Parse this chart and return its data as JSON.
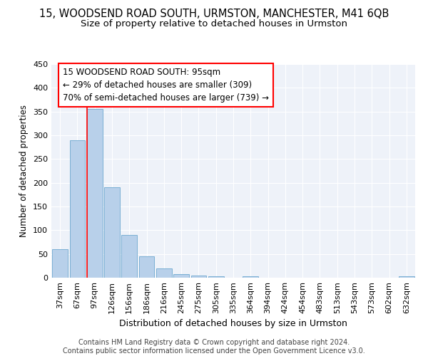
{
  "title_line1": "15, WOODSEND ROAD SOUTH, URMSTON, MANCHESTER, M41 6QB",
  "title_line2": "Size of property relative to detached houses in Urmston",
  "xlabel": "Distribution of detached houses by size in Urmston",
  "ylabel": "Number of detached properties",
  "bar_labels": [
    "37sqm",
    "67sqm",
    "97sqm",
    "126sqm",
    "156sqm",
    "186sqm",
    "216sqm",
    "245sqm",
    "275sqm",
    "305sqm",
    "335sqm",
    "364sqm",
    "394sqm",
    "424sqm",
    "454sqm",
    "483sqm",
    "513sqm",
    "543sqm",
    "573sqm",
    "602sqm",
    "632sqm"
  ],
  "bar_values": [
    60,
    290,
    355,
    190,
    90,
    45,
    20,
    8,
    4,
    3,
    0,
    3,
    0,
    0,
    0,
    0,
    0,
    0,
    0,
    0,
    3
  ],
  "bar_color": "#b8d0ea",
  "bar_edgecolor": "#7aafd4",
  "property_line_x": 2,
  "annotation_text": "15 WOODSEND ROAD SOUTH: 95sqm\n← 29% of detached houses are smaller (309)\n70% of semi-detached houses are larger (739) →",
  "annotation_box_color": "white",
  "annotation_box_edgecolor": "red",
  "vline_color": "red",
  "ylim": [
    0,
    450
  ],
  "yticks": [
    0,
    50,
    100,
    150,
    200,
    250,
    300,
    350,
    400,
    450
  ],
  "background_color": "#eef2f9",
  "grid_color": "white",
  "footer_text": "Contains HM Land Registry data © Crown copyright and database right 2024.\nContains public sector information licensed under the Open Government Licence v3.0.",
  "title_fontsize": 10.5,
  "subtitle_fontsize": 9.5,
  "tick_fontsize": 8,
  "ylabel_fontsize": 8.5,
  "xlabel_fontsize": 9,
  "annotation_fontsize": 8.5,
  "footer_fontsize": 7
}
